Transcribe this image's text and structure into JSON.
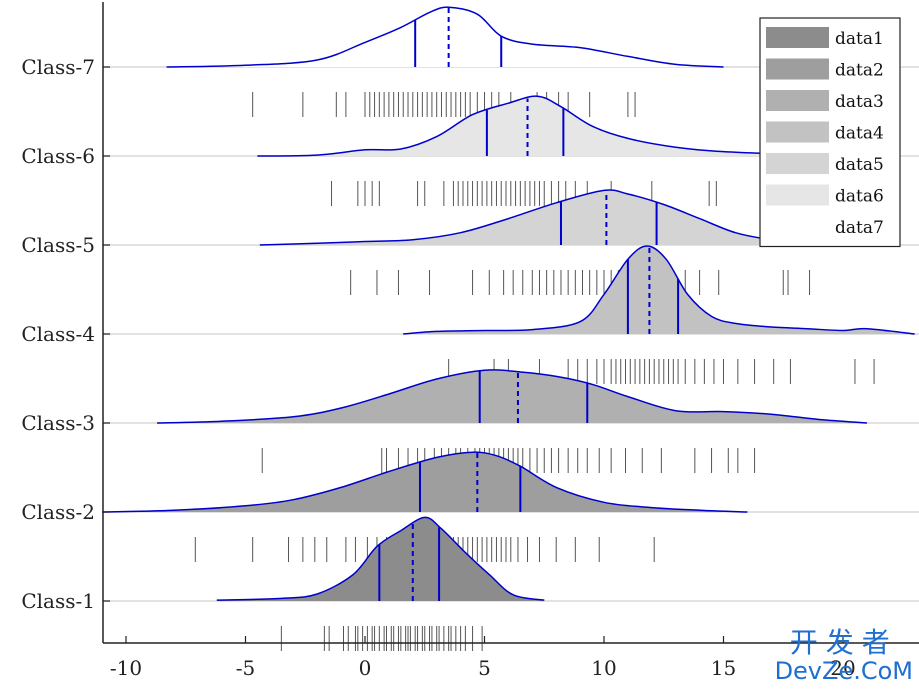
{
  "chart_data": {
    "type": "ridgeline",
    "xlim": [
      -11,
      23
    ],
    "xticks": [
      -10,
      -5,
      0,
      5,
      10,
      15,
      20
    ],
    "xtick_labels": [
      "-10",
      "-5",
      "0",
      "5",
      "10",
      "15",
      "20"
    ],
    "grid": true,
    "legend": {
      "placement": "top-right",
      "entries": [
        "data1",
        "data2",
        "data3",
        "data4",
        "data5",
        "data6",
        "data7"
      ]
    },
    "colors": {
      "curve_line": "#0000cc",
      "quartile_line": "#0000cc",
      "rug": "#555555",
      "fills": [
        "#8c8c8c",
        "#9e9e9e",
        "#b0b0b0",
        "#c2c2c2",
        "#d4d4d4",
        "#e6e6e6",
        "#ffffff"
      ]
    },
    "series": [
      {
        "name": "data1",
        "label": "Class-1",
        "xmin": -6.2,
        "xmax": 7.5,
        "density": [
          [
            -6.2,
            0.01
          ],
          [
            -3.5,
            0.03
          ],
          [
            -2,
            0.08
          ],
          [
            -0.5,
            0.3
          ],
          [
            0.5,
            0.62
          ],
          [
            1.5,
            0.8
          ],
          [
            2.5,
            0.95
          ],
          [
            3.2,
            0.82
          ],
          [
            4.2,
            0.55
          ],
          [
            5.2,
            0.3
          ],
          [
            6.2,
            0.07
          ],
          [
            7.5,
            0.01
          ]
        ],
        "q1": 0.6,
        "median": 2.0,
        "q3": 3.1,
        "rug": [
          -3.5,
          -1.7,
          -1.5,
          -0.9,
          -0.7,
          -0.4,
          -0.3,
          -0.1,
          0.1,
          0.3,
          0.4,
          0.6,
          0.8,
          0.9,
          1.1,
          1.2,
          1.4,
          1.5,
          1.7,
          1.8,
          1.9,
          2.1,
          2.2,
          2.4,
          2.5,
          2.7,
          2.8,
          3.0,
          3.1,
          3.3,
          3.5,
          3.6,
          3.8,
          4.0,
          4.2,
          4.5,
          4.9
        ]
      },
      {
        "name": "data2",
        "label": "Class-2",
        "xmin": -11,
        "xmax": 16,
        "density": [
          [
            -11,
            0.0
          ],
          [
            -8,
            0.02
          ],
          [
            -5,
            0.07
          ],
          [
            -3,
            0.14
          ],
          [
            -1,
            0.28
          ],
          [
            1,
            0.46
          ],
          [
            3,
            0.62
          ],
          [
            4.5,
            0.68
          ],
          [
            5.5,
            0.64
          ],
          [
            6.5,
            0.52
          ],
          [
            8,
            0.28
          ],
          [
            10,
            0.11
          ],
          [
            12,
            0.05
          ],
          [
            14,
            0.02
          ],
          [
            16,
            0.0
          ]
        ],
        "q1": 2.3,
        "median": 4.7,
        "q3": 6.5,
        "rug": [
          -7.1,
          -4.7,
          -3.2,
          -2.6,
          -2.1,
          -1.6,
          -0.8,
          -0.4,
          0.1,
          0.5,
          0.9,
          1.2,
          1.5,
          1.8,
          2.1,
          2.4,
          2.7,
          2.9,
          3.1,
          3.3,
          3.5,
          3.7,
          3.9,
          4.1,
          4.3,
          4.5,
          4.7,
          4.9,
          5.1,
          5.3,
          5.5,
          5.7,
          5.9,
          6.1,
          6.4,
          6.8,
          7.3,
          8.0,
          8.8,
          9.8,
          12.1
        ]
      },
      {
        "name": "data3",
        "label": "Class-3",
        "xmin": -8.7,
        "xmax": 21,
        "density": [
          [
            -8.7,
            0.0
          ],
          [
            -6,
            0.02
          ],
          [
            -3,
            0.07
          ],
          [
            -1,
            0.17
          ],
          [
            1,
            0.33
          ],
          [
            3,
            0.5
          ],
          [
            5,
            0.6
          ],
          [
            6.5,
            0.58
          ],
          [
            8,
            0.53
          ],
          [
            9.5,
            0.44
          ],
          [
            11,
            0.3
          ],
          [
            13,
            0.14
          ],
          [
            15,
            0.13
          ],
          [
            17,
            0.1
          ],
          [
            19,
            0.04
          ],
          [
            21,
            0.0
          ]
        ],
        "q1": 4.8,
        "median": 6.4,
        "q3": 9.3,
        "rug": [
          -4.3,
          0.7,
          0.9,
          1.4,
          1.8,
          2.2,
          2.5,
          2.9,
          3.2,
          3.5,
          3.8,
          4.0,
          4.3,
          4.6,
          4.8,
          5.0,
          5.2,
          5.4,
          5.6,
          5.8,
          6.0,
          6.2,
          6.4,
          6.6,
          6.9,
          7.2,
          7.5,
          7.8,
          8.1,
          8.5,
          8.9,
          9.3,
          9.8,
          10.3,
          10.9,
          11.6,
          12.4,
          13.8,
          14.5,
          15.2,
          15.6,
          16.3
        ]
      },
      {
        "name": "data4",
        "label": "Class-4",
        "xmin": 1.6,
        "xmax": 23,
        "density": [
          [
            1.6,
            0.0
          ],
          [
            3,
            0.03
          ],
          [
            5,
            0.04
          ],
          [
            7,
            0.05
          ],
          [
            9,
            0.14
          ],
          [
            10,
            0.45
          ],
          [
            11,
            0.85
          ],
          [
            11.8,
            1.0
          ],
          [
            12.6,
            0.85
          ],
          [
            13.5,
            0.45
          ],
          [
            14.5,
            0.2
          ],
          [
            15.5,
            0.12
          ],
          [
            17,
            0.08
          ],
          [
            18.5,
            0.06
          ],
          [
            20,
            0.04
          ],
          [
            21,
            0.06
          ],
          [
            23,
            0.0
          ]
        ],
        "q1": 11.0,
        "median": 11.9,
        "q3": 13.1,
        "rug": [
          3.5,
          5.4,
          6.0,
          7.3,
          8.5,
          8.9,
          9.3,
          9.7,
          10.0,
          10.3,
          10.5,
          10.7,
          10.9,
          11.1,
          11.3,
          11.5,
          11.7,
          11.9,
          12.1,
          12.3,
          12.5,
          12.7,
          12.9,
          13.1,
          13.4,
          13.8,
          14.2,
          14.6,
          15.0,
          15.6,
          16.3,
          17.1,
          17.8,
          20.5,
          21.3
        ]
      },
      {
        "name": "data5",
        "label": "Class-5",
        "xmin": -4.4,
        "xmax": 19.5,
        "density": [
          [
            -4.4,
            0.0
          ],
          [
            -2,
            0.02
          ],
          [
            0,
            0.04
          ],
          [
            2,
            0.06
          ],
          [
            4,
            0.14
          ],
          [
            6,
            0.3
          ],
          [
            8,
            0.48
          ],
          [
            10,
            0.62
          ],
          [
            11,
            0.58
          ],
          [
            12.5,
            0.46
          ],
          [
            14,
            0.3
          ],
          [
            15.5,
            0.14
          ],
          [
            17,
            0.06
          ],
          [
            18.5,
            0.02
          ],
          [
            19.5,
            0.0
          ]
        ],
        "q1": 8.2,
        "median": 10.1,
        "q3": 12.2,
        "rug": [
          -0.6,
          0.5,
          1.4,
          2.7,
          4.5,
          5.2,
          5.8,
          6.2,
          6.6,
          7.0,
          7.3,
          7.6,
          7.9,
          8.2,
          8.5,
          8.8,
          9.1,
          9.4,
          9.7,
          10.0,
          10.3,
          10.6,
          10.9,
          11.2,
          11.5,
          11.8,
          12.1,
          12.5,
          12.9,
          13.4,
          14.0,
          14.8,
          17.5,
          17.7,
          18.6
        ]
      },
      {
        "name": "data6",
        "label": "Class-6",
        "xmin": -4.5,
        "xmax": 22,
        "density": [
          [
            -4.5,
            0.0
          ],
          [
            -2,
            0.01
          ],
          [
            0,
            0.07
          ],
          [
            1.5,
            0.08
          ],
          [
            3,
            0.22
          ],
          [
            4.5,
            0.47
          ],
          [
            6,
            0.6
          ],
          [
            7.2,
            0.68
          ],
          [
            8.2,
            0.56
          ],
          [
            9.5,
            0.34
          ],
          [
            11,
            0.2
          ],
          [
            13,
            0.1
          ],
          [
            15,
            0.05
          ],
          [
            18,
            0.02
          ],
          [
            22,
            0.0
          ]
        ],
        "q1": 5.1,
        "median": 6.8,
        "q3": 8.3,
        "rug": [
          -1.4,
          -0.3,
          0.0,
          0.3,
          0.6,
          2.2,
          2.5,
          3.3,
          3.7,
          3.9,
          4.1,
          4.3,
          4.5,
          4.7,
          4.9,
          5.1,
          5.3,
          5.5,
          5.7,
          5.9,
          6.1,
          6.3,
          6.5,
          6.7,
          6.9,
          7.1,
          7.3,
          7.5,
          7.8,
          8.1,
          8.4,
          8.8,
          9.3,
          10.3,
          12.0,
          14.4,
          14.7
        ]
      },
      {
        "name": "data7",
        "label": "Class-7",
        "xmin": -8.3,
        "xmax": 15,
        "density": [
          [
            -8.3,
            0.0
          ],
          [
            -5,
            0.02
          ],
          [
            -2,
            0.08
          ],
          [
            0,
            0.28
          ],
          [
            1.5,
            0.45
          ],
          [
            2.7,
            0.62
          ],
          [
            3.5,
            0.68
          ],
          [
            4.7,
            0.6
          ],
          [
            5.7,
            0.35
          ],
          [
            7,
            0.26
          ],
          [
            9,
            0.22
          ],
          [
            11,
            0.12
          ],
          [
            13,
            0.03
          ],
          [
            15,
            0.0
          ]
        ],
        "q1": 2.1,
        "median": 3.5,
        "q3": 5.7,
        "rug": [
          -4.7,
          -2.6,
          -1.2,
          -0.8,
          0.0,
          0.2,
          0.4,
          0.6,
          0.8,
          1.0,
          1.2,
          1.4,
          1.6,
          1.8,
          2.0,
          2.2,
          2.4,
          2.6,
          2.8,
          3.0,
          3.2,
          3.4,
          3.6,
          3.8,
          4.0,
          4.2,
          4.4,
          4.7,
          5.0,
          5.3,
          5.6,
          6.1,
          7.2,
          7.6,
          8.1,
          8.5,
          9.4,
          11.0,
          11.3
        ]
      }
    ]
  },
  "watermark": {
    "top": "开发者",
    "bottom": "DevZe.CoM"
  }
}
